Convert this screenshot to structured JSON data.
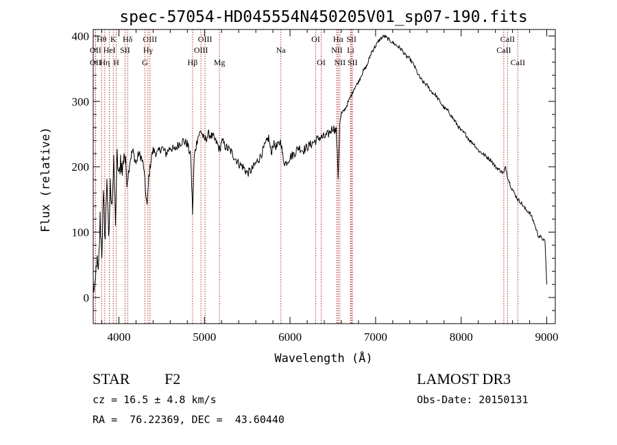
{
  "chart_data": {
    "type": "line",
    "title": "spec-57054-HD045554N450205V01_sp07-190.fits",
    "xlabel": "Wavelength (Å)",
    "ylabel": "Flux (relative)",
    "xlim": [
      3700,
      9100
    ],
    "ylim": [
      -40,
      410
    ],
    "x_ticks": [
      "4000",
      "5000",
      "6000",
      "7000",
      "8000",
      "9000"
    ],
    "y_ticks": [
      "0",
      "100",
      "200",
      "300",
      "400"
    ],
    "line_color": "#000000",
    "marker_color": "#b22222",
    "series": [
      {
        "name": "flux",
        "points": [
          [
            3700,
            20
          ],
          [
            3720,
            5
          ],
          [
            3740,
            60
          ],
          [
            3760,
            30
          ],
          [
            3780,
            120
          ],
          [
            3800,
            70
          ],
          [
            3820,
            150
          ],
          [
            3840,
            90
          ],
          [
            3860,
            190
          ],
          [
            3880,
            80
          ],
          [
            3900,
            170
          ],
          [
            3920,
            150
          ],
          [
            3940,
            200
          ],
          [
            3960,
            120
          ],
          [
            3980,
            215
          ],
          [
            4000,
            180
          ],
          [
            4020,
            215
          ],
          [
            4040,
            190
          ],
          [
            4060,
            225
          ],
          [
            4080,
            200
          ],
          [
            4100,
            180
          ],
          [
            4130,
            210
          ],
          [
            4160,
            225
          ],
          [
            4200,
            205
          ],
          [
            4230,
            220
          ],
          [
            4260,
            215
          ],
          [
            4290,
            200
          ],
          [
            4310,
            165
          ],
          [
            4330,
            140
          ],
          [
            4350,
            185
          ],
          [
            4380,
            215
          ],
          [
            4400,
            225
          ],
          [
            4450,
            220
          ],
          [
            4500,
            230
          ],
          [
            4550,
            220
          ],
          [
            4600,
            230
          ],
          [
            4650,
            225
          ],
          [
            4700,
            235
          ],
          [
            4750,
            240
          ],
          [
            4800,
            235
          ],
          [
            4840,
            215
          ],
          [
            4861,
            130
          ],
          [
            4880,
            215
          ],
          [
            4920,
            245
          ],
          [
            4960,
            255
          ],
          [
            5000,
            240
          ],
          [
            5050,
            250
          ],
          [
            5100,
            245
          ],
          [
            5150,
            235
          ],
          [
            5180,
            225
          ],
          [
            5200,
            240
          ],
          [
            5250,
            230
          ],
          [
            5300,
            225
          ],
          [
            5350,
            215
          ],
          [
            5400,
            205
          ],
          [
            5450,
            200
          ],
          [
            5500,
            190
          ],
          [
            5550,
            195
          ],
          [
            5600,
            205
          ],
          [
            5650,
            215
          ],
          [
            5700,
            230
          ],
          [
            5750,
            245
          ],
          [
            5780,
            220
          ],
          [
            5800,
            235
          ],
          [
            5850,
            230
          ],
          [
            5893,
            240
          ],
          [
            5920,
            210
          ],
          [
            5950,
            205
          ],
          [
            6000,
            215
          ],
          [
            6050,
            220
          ],
          [
            6100,
            230
          ],
          [
            6150,
            225
          ],
          [
            6200,
            230
          ],
          [
            6250,
            235
          ],
          [
            6300,
            240
          ],
          [
            6350,
            245
          ],
          [
            6400,
            245
          ],
          [
            6450,
            250
          ],
          [
            6500,
            260
          ],
          [
            6540,
            255
          ],
          [
            6563,
            185
          ],
          [
            6580,
            265
          ],
          [
            6600,
            280
          ],
          [
            6650,
            290
          ],
          [
            6700,
            305
          ],
          [
            6750,
            320
          ],
          [
            6800,
            330
          ],
          [
            6850,
            345
          ],
          [
            6900,
            355
          ],
          [
            6950,
            375
          ],
          [
            7000,
            385
          ],
          [
            7050,
            395
          ],
          [
            7100,
            400
          ],
          [
            7150,
            395
          ],
          [
            7200,
            390
          ],
          [
            7250,
            385
          ],
          [
            7300,
            380
          ],
          [
            7350,
            370
          ],
          [
            7400,
            365
          ],
          [
            7450,
            355
          ],
          [
            7500,
            340
          ],
          [
            7550,
            330
          ],
          [
            7600,
            325
          ],
          [
            7650,
            315
          ],
          [
            7700,
            310
          ],
          [
            7750,
            300
          ],
          [
            7800,
            290
          ],
          [
            7850,
            285
          ],
          [
            7900,
            275
          ],
          [
            7950,
            265
          ],
          [
            8000,
            255
          ],
          [
            8050,
            250
          ],
          [
            8100,
            240
          ],
          [
            8150,
            235
          ],
          [
            8200,
            225
          ],
          [
            8250,
            220
          ],
          [
            8300,
            215
          ],
          [
            8350,
            210
          ],
          [
            8400,
            200
          ],
          [
            8450,
            195
          ],
          [
            8498,
            190
          ],
          [
            8520,
            200
          ],
          [
            8542,
            185
          ],
          [
            8580,
            170
          ],
          [
            8620,
            160
          ],
          [
            8662,
            150
          ],
          [
            8700,
            145
          ],
          [
            8750,
            135
          ],
          [
            8800,
            130
          ],
          [
            8850,
            115
          ],
          [
            8900,
            95
          ],
          [
            8950,
            90
          ],
          [
            8980,
            85
          ],
          [
            9000,
            20
          ]
        ]
      }
    ],
    "line_markers": [
      {
        "label": "Hθ",
        "wave": 3798,
        "row": 1
      },
      {
        "label": "OII",
        "wave": 3727,
        "row": 2
      },
      {
        "label": "OII",
        "wave": 3727,
        "row": 3
      },
      {
        "label": "K",
        "wave": 3934,
        "row": 1
      },
      {
        "label": "HeI",
        "wave": 3889,
        "row": 2
      },
      {
        "label": "Hη",
        "wave": 3835,
        "row": 3
      },
      {
        "label": "SII",
        "wave": 4072,
        "row": 2
      },
      {
        "label": "H",
        "wave": 3969,
        "row": 3
      },
      {
        "label": "Hδ",
        "wave": 4102,
        "row": 1
      },
      {
        "label": "OIII",
        "wave": 4363,
        "row": 1
      },
      {
        "label": "Hγ",
        "wave": 4340,
        "row": 2
      },
      {
        "label": "G",
        "wave": 4304,
        "row": 3
      },
      {
        "label": "Hβ",
        "wave": 4861,
        "row": 3
      },
      {
        "label": "OIII",
        "wave": 5007,
        "row": 1
      },
      {
        "label": "OIII",
        "wave": 4959,
        "row": 2
      },
      {
        "label": "Mg",
        "wave": 5175,
        "row": 3
      },
      {
        "label": "Na",
        "wave": 5893,
        "row": 2
      },
      {
        "label": "OI",
        "wave": 6300,
        "row": 1
      },
      {
        "label": "OI",
        "wave": 6364,
        "row": 3
      },
      {
        "label": "Hα",
        "wave": 6563,
        "row": 1
      },
      {
        "label": "NII",
        "wave": 6548,
        "row": 2
      },
      {
        "label": "NII",
        "wave": 6583,
        "row": 3
      },
      {
        "label": "SII",
        "wave": 6717,
        "row": 1
      },
      {
        "label": "Li",
        "wave": 6708,
        "row": 2
      },
      {
        "label": "SII",
        "wave": 6731,
        "row": 3
      },
      {
        "label": "CaII",
        "wave": 8542,
        "row": 1
      },
      {
        "label": "CaII",
        "wave": 8498,
        "row": 2
      },
      {
        "label": "CaII",
        "wave": 8662,
        "row": 3
      }
    ]
  },
  "info": {
    "class": "STAR",
    "subclass": "F2",
    "survey": "LAMOST DR3",
    "cz": "cz = 16.5 ± 4.8 km/s",
    "obs_date": "Obs-Date: 20150131",
    "coords": "RA =  76.22369, DEC =  43.60440"
  }
}
